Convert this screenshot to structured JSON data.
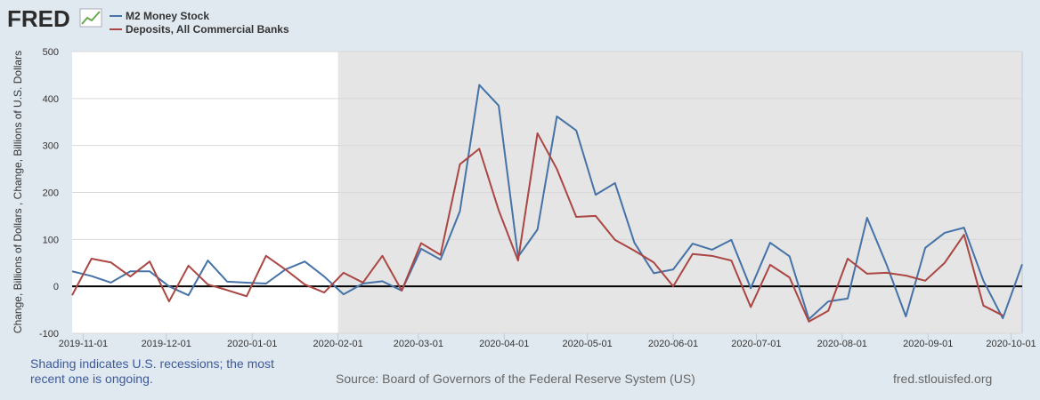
{
  "logo": {
    "text": "FRED"
  },
  "footer": {
    "shading_note": "Shading indicates U.S. recessions; the most recent one is ongoing.",
    "source": "Source: Board of Governors of the Federal Reserve System (US)",
    "site": "fred.stlouisfed.org"
  },
  "chart_data": {
    "type": "line",
    "title": "",
    "xlabel": "",
    "ylabel": "Change, Billions of Dollars , Change, Billions of U.S. Dollars",
    "ylim": [
      -100,
      500
    ],
    "yticks": [
      "500",
      "400",
      "300",
      "200",
      "100",
      "0",
      "-100"
    ],
    "xlim": [
      "2019-10-28",
      "2020-10-05"
    ],
    "xticks": [
      "2019-11-01",
      "2019-12-01",
      "2020-01-01",
      "2020-02-01",
      "2020-03-01",
      "2020-04-01",
      "2020-05-01",
      "2020-06-01",
      "2020-07-01",
      "2020-08-01",
      "2020-09-01",
      "2020-10-01"
    ],
    "grid": "horizontal",
    "legend_position": "top-left",
    "recession_shading": {
      "start": "2020-02-01",
      "end": "2020-10-05",
      "color": "#e5e5e5"
    },
    "x_start": "2019-10-28",
    "x_frequency": "weekly",
    "series": [
      {
        "name": "M2 Money Stock",
        "color": "#4572a7",
        "values": [
          32,
          22,
          8,
          32,
          32,
          0,
          -19,
          55,
          10,
          8,
          6,
          36,
          53,
          21,
          -17,
          6,
          11,
          -9,
          80,
          57,
          160,
          429,
          385,
          63,
          121,
          362,
          332,
          195,
          220,
          93,
          28,
          36,
          91,
          78,
          99,
          -4,
          93,
          64,
          -70,
          -32,
          -26,
          146,
          47,
          -64,
          82,
          114,
          125,
          12,
          -68,
          47
        ]
      },
      {
        "name": "Deposits, All Commercial Banks",
        "color": "#aa4643",
        "values": [
          -19,
          59,
          51,
          21,
          53,
          -32,
          44,
          4,
          -8,
          -21,
          65,
          36,
          4,
          -13,
          29,
          8,
          65,
          -9,
          92,
          67,
          260,
          293,
          162,
          55,
          326,
          250,
          148,
          150,
          99,
          76,
          51,
          0,
          69,
          65,
          55,
          -44,
          46,
          19,
          -75,
          -52,
          59,
          27,
          29,
          23,
          12,
          50,
          110,
          -41,
          -62
        ]
      }
    ]
  }
}
